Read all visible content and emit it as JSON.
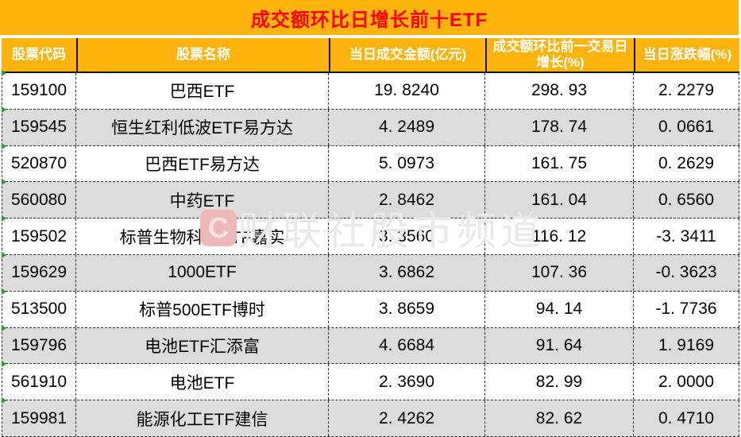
{
  "title": "成交额环比日增长前十ETF",
  "watermark": {
    "logo_letter": "C",
    "text": "财联社股市频道"
  },
  "colors": {
    "header_bg": "#FFB30D",
    "title_text": "#FE0000",
    "header_text": "#FFFFFF",
    "row_alt_bg": "#DCDCDC",
    "body_text": "#000000",
    "border_dashed": "#2B2B2B",
    "marker_green": "#2E9B2E",
    "watermark_text": "#E9E9E9",
    "watermark_logo_bg": "#EDB9B9"
  },
  "table": {
    "headers": [
      "股票代码",
      "股票名称",
      "当日成交金额(亿元)",
      "成交额环比前一交易日增长(%)",
      "当日涨跌幅(%)"
    ],
    "rows": [
      {
        "code": "159100",
        "name": "巴西ETF",
        "amount": "19. 8240",
        "growth": "298. 93",
        "change": "2. 2279"
      },
      {
        "code": "159545",
        "name": "恒生红利低波ETF易方达",
        "amount": "4. 2489",
        "growth": "178. 74",
        "change": "0. 0661"
      },
      {
        "code": "520870",
        "name": "巴西ETF易方达",
        "amount": "5. 0973",
        "growth": "161. 75",
        "change": "0. 2629"
      },
      {
        "code": "560080",
        "name": "中药ETF",
        "amount": "2. 8462",
        "growth": "161. 04",
        "change": "0. 6560"
      },
      {
        "code": "159502",
        "name": "标普生物科技ETF嘉实",
        "amount": "3. 3560",
        "growth": "116. 12",
        "change": "-3. 3411"
      },
      {
        "code": "159629",
        "name": "1000ETF",
        "amount": "3. 6862",
        "growth": "107. 36",
        "change": "-0. 3623"
      },
      {
        "code": "513500",
        "name": "标普500ETF博时",
        "amount": "3. 8659",
        "growth": "94. 14",
        "change": "-1. 7736"
      },
      {
        "code": "159796",
        "name": "电池ETF汇添富",
        "amount": "4. 6684",
        "growth": "91. 64",
        "change": "1. 9169"
      },
      {
        "code": "561910",
        "name": "电池ETF",
        "amount": "2. 3690",
        "growth": "82. 99",
        "change": "2. 0000"
      },
      {
        "code": "159981",
        "name": "能源化工ETF建信",
        "amount": "2. 4262",
        "growth": "82. 62",
        "change": "0. 4710"
      }
    ]
  },
  "chart_data": {
    "type": "table",
    "title": "成交额环比日增长前十ETF",
    "columns": [
      "股票代码",
      "股票名称",
      "当日成交金额(亿元)",
      "成交额环比前一交易日增长(%)",
      "当日涨跌幅(%)"
    ],
    "rows": [
      [
        "159100",
        "巴西ETF",
        19.824,
        298.93,
        2.2279
      ],
      [
        "159545",
        "恒生红利低波ETF易方达",
        4.2489,
        178.74,
        0.0661
      ],
      [
        "520870",
        "巴西ETF易方达",
        5.0973,
        161.75,
        0.2629
      ],
      [
        "560080",
        "中药ETF",
        2.8462,
        161.04,
        0.656
      ],
      [
        "159502",
        "标普生物科技ETF嘉实",
        3.356,
        116.12,
        -3.3411
      ],
      [
        "159629",
        "1000ETF",
        3.6862,
        107.36,
        -0.3623
      ],
      [
        "513500",
        "标普500ETF博时",
        3.8659,
        94.14,
        -1.7736
      ],
      [
        "159796",
        "电池ETF汇添富",
        4.6684,
        91.64,
        1.9169
      ],
      [
        "561910",
        "电池ETF",
        2.369,
        82.99,
        2.0
      ],
      [
        "159981",
        "能源化工ETF建信",
        2.4262,
        82.62,
        0.471
      ]
    ]
  }
}
